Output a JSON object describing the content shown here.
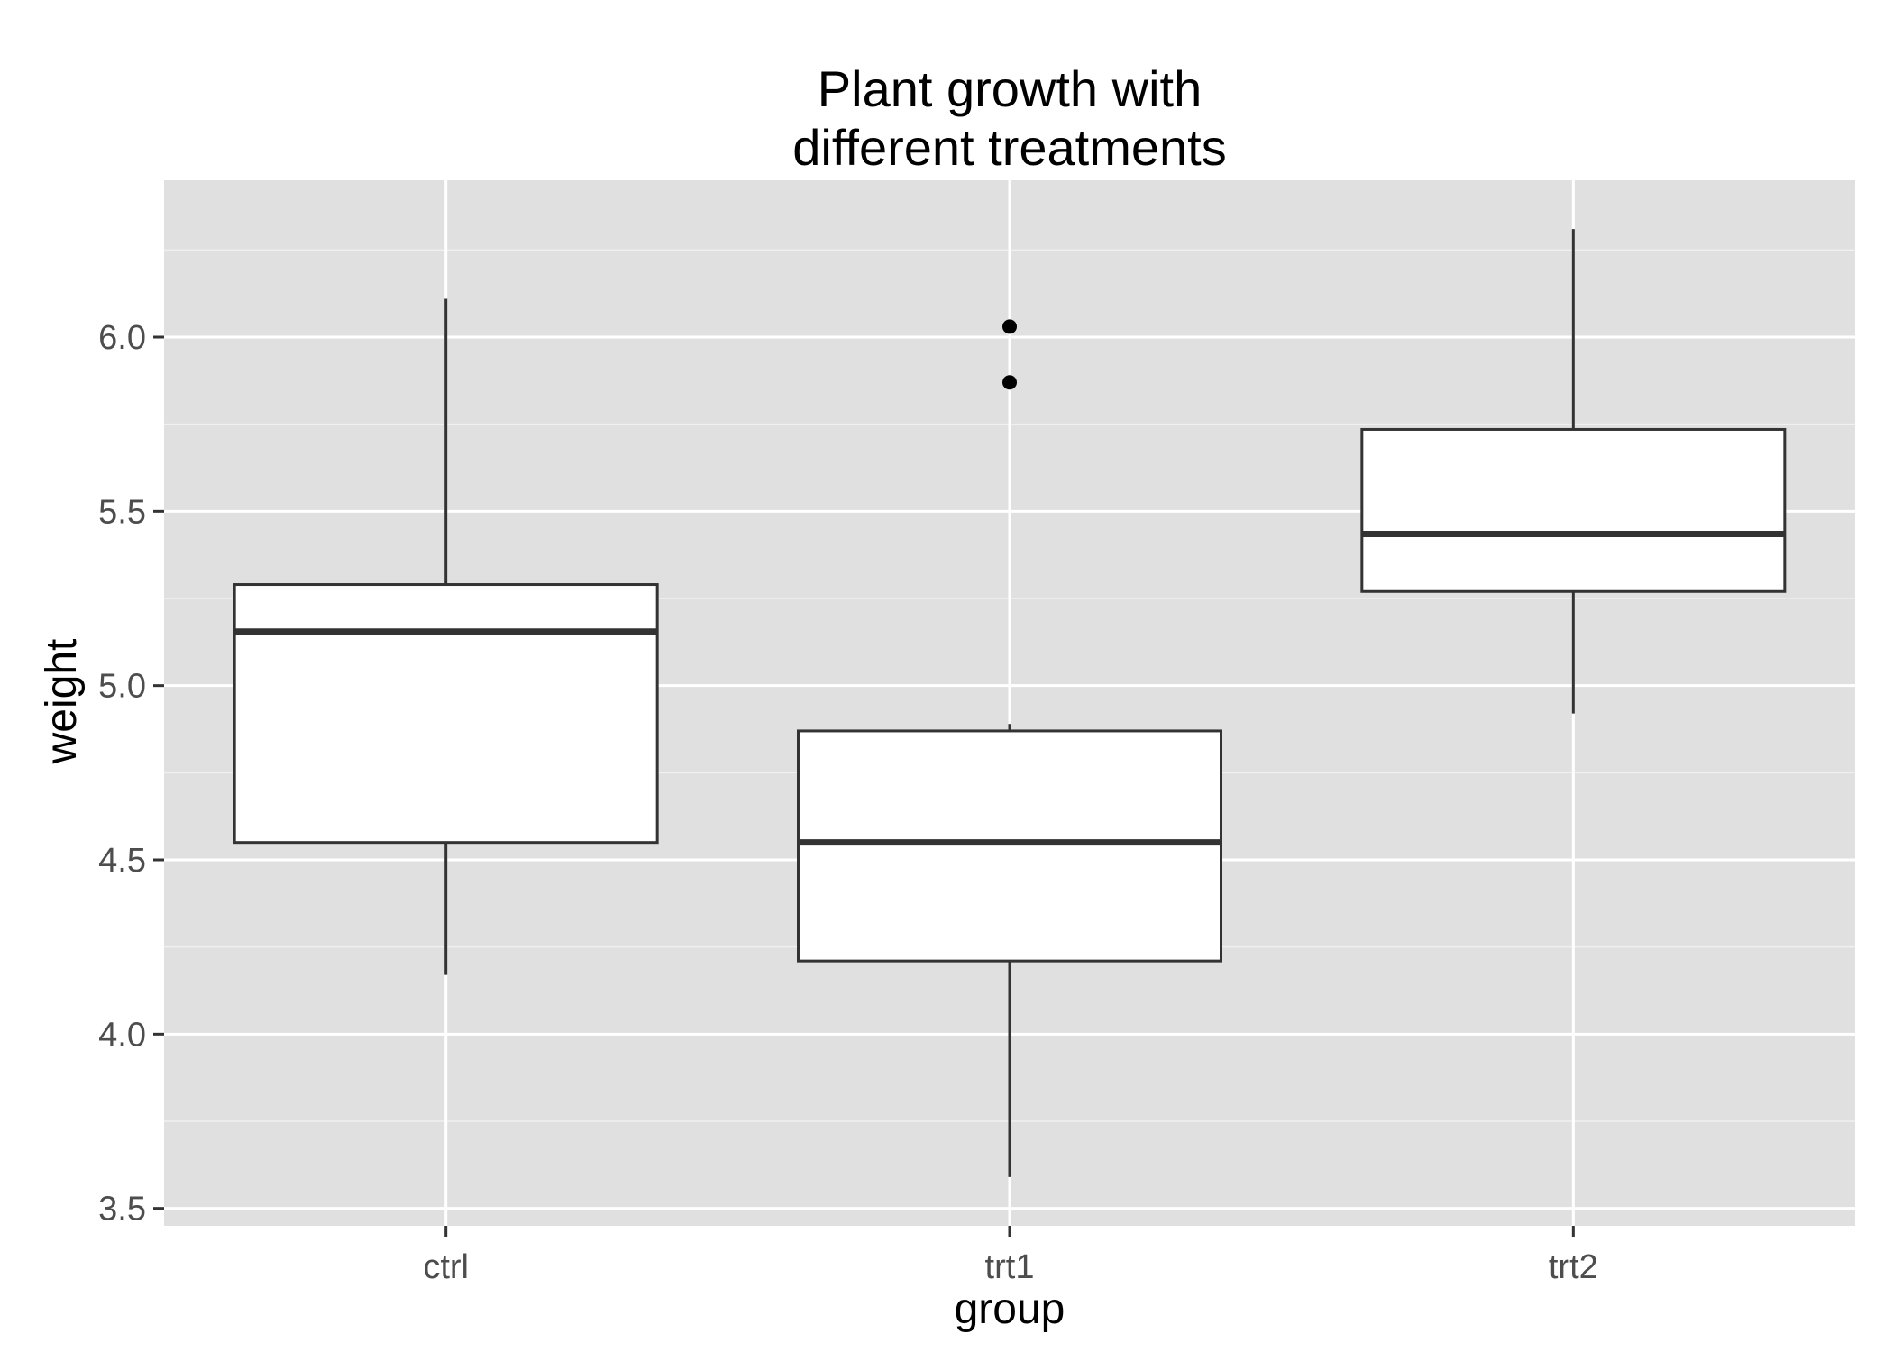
{
  "chart_data": {
    "type": "box",
    "title_lines": [
      "Plant growth with",
      "different treatments"
    ],
    "xlabel": "group",
    "ylabel": "weight",
    "categories": [
      "ctrl",
      "trt1",
      "trt2"
    ],
    "ylim": [
      3.45,
      6.45
    ],
    "yticks": [
      3.5,
      4.0,
      4.5,
      5.0,
      5.5,
      6.0
    ],
    "ytick_labels": [
      "3.5",
      "4.0",
      "4.5",
      "5.0",
      "5.5",
      "6.0"
    ],
    "grid": true,
    "legend": "none",
    "boxes": [
      {
        "category": "ctrl",
        "whisker_low": 4.17,
        "q1": 4.55,
        "median": 5.155,
        "q3": 5.29,
        "whisker_high": 6.11,
        "outliers": []
      },
      {
        "category": "trt1",
        "whisker_low": 3.59,
        "q1": 4.21,
        "median": 4.55,
        "q3": 4.87,
        "whisker_high": 4.89,
        "outliers": [
          5.87,
          6.03
        ]
      },
      {
        "category": "trt2",
        "whisker_low": 4.92,
        "q1": 5.27,
        "median": 5.435,
        "q3": 5.735,
        "whisker_high": 6.31,
        "outliers": []
      }
    ]
  },
  "colors": {
    "panel_background": "#e0e0e0",
    "grid_major": "#ffffff",
    "grid_minor": "#f0f0f0",
    "box_fill": "#ffffff",
    "box_stroke": "#333333",
    "tick_text": "#4d4d4d"
  }
}
